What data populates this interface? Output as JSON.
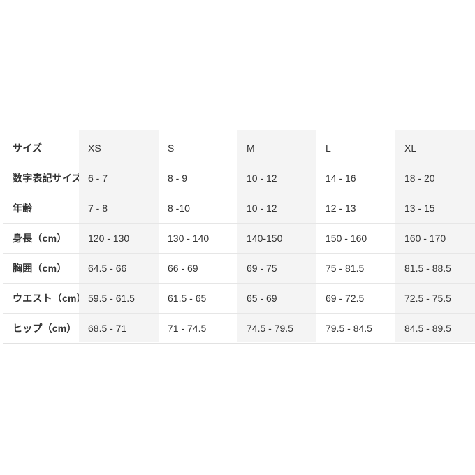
{
  "page": {
    "background_color": "#ffffff"
  },
  "chart_data": {
    "type": "table",
    "title": "",
    "header": {
      "label": "サイズ",
      "sizes": [
        "XS",
        "S",
        "M",
        "L",
        "XL"
      ]
    },
    "rows": [
      {
        "label": "数字表記サイズ",
        "values": [
          "6 - 7",
          "8 - 9",
          "10 - 12",
          "14 - 16",
          "18 - 20"
        ]
      },
      {
        "label": "年齢",
        "values": [
          "7 - 8",
          "8 -10",
          "10 - 12",
          "12 - 13",
          "13 - 15"
        ]
      },
      {
        "label": "身長（cm）",
        "values": [
          "120 - 130",
          "130 - 140",
          "140-150",
          "150 - 160",
          "160 - 170"
        ]
      },
      {
        "label": "胸囲（cm）",
        "values": [
          "64.5 - 66",
          "66 - 69",
          "69 - 75",
          "75 - 81.5",
          "81.5 - 88.5"
        ]
      },
      {
        "label": "ウエスト（cm）",
        "values": [
          "59.5 - 61.5",
          "61.5 - 65",
          "65 - 69",
          "69 - 72.5",
          "72.5 - 75.5"
        ]
      },
      {
        "label": "ヒップ（cm）",
        "values": [
          "68.5 - 71",
          "71 - 74.5",
          "74.5 - 79.5",
          "79.5 - 84.5",
          "84.5 - 89.5"
        ]
      }
    ],
    "layout": {
      "striped_columns": [
        "XS",
        "M",
        "XL"
      ],
      "stripe_color": "#f4f4f4",
      "border_color": "#e2e2e2",
      "text_color": "#333333",
      "background_color": "#ffffff",
      "grid": "horizontal-lines-only",
      "right_edge_clipped": true
    }
  }
}
